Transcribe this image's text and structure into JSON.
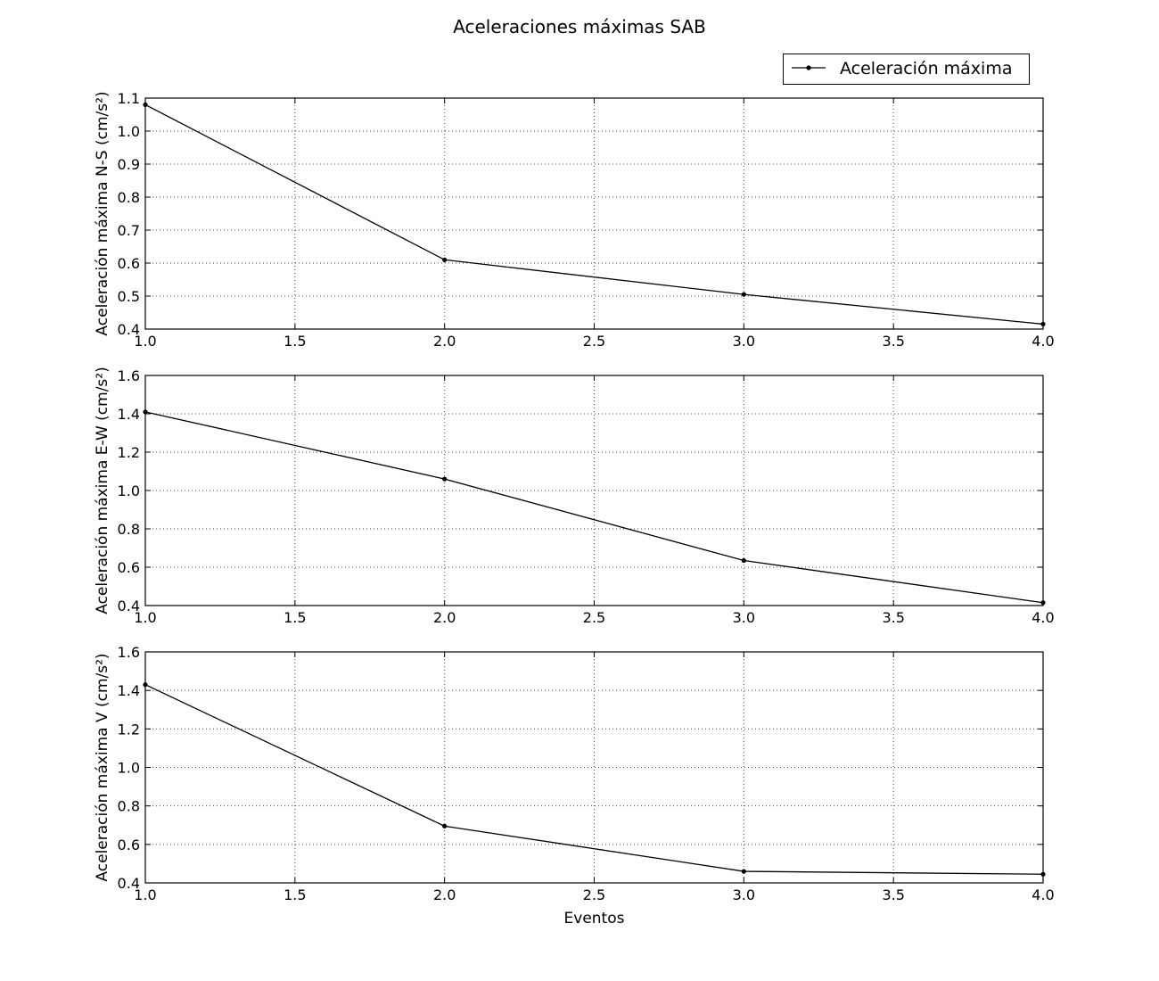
{
  "figure": {
    "title": "Aceleraciones máximas SAB",
    "xlabel": "Eventos"
  },
  "legend": {
    "label": "Aceleración máxima",
    "placement": "top-right"
  },
  "colors": {
    "line": "#000000",
    "grid": "#000000",
    "background": "#ffffff"
  },
  "chart_data": [
    {
      "type": "line",
      "title": "Aceleraciones máximas SAB",
      "xlabel": "",
      "ylabel": "Aceleración máxima N-S (cm/s²)",
      "xlim": [
        1.0,
        4.0
      ],
      "ylim": [
        0.4,
        1.1
      ],
      "xticks": [
        "1.0",
        "1.5",
        "2.0",
        "2.5",
        "3.0",
        "3.5",
        "4.0"
      ],
      "yticks": [
        "0.4",
        "0.5",
        "0.6",
        "0.7",
        "0.8",
        "0.9",
        "1.0",
        "1.1"
      ],
      "grid": true,
      "series": [
        {
          "name": "Aceleración máxima",
          "x": [
            1,
            2,
            3,
            4
          ],
          "values": [
            1.08,
            0.61,
            0.505,
            0.415
          ]
        }
      ]
    },
    {
      "type": "line",
      "xlabel": "",
      "ylabel": "Aceleración máxima E-W (cm/s²)",
      "xlim": [
        1.0,
        4.0
      ],
      "ylim": [
        0.4,
        1.6
      ],
      "xticks": [
        "1.0",
        "1.5",
        "2.0",
        "2.5",
        "3.0",
        "3.5",
        "4.0"
      ],
      "yticks": [
        "0.4",
        "0.6",
        "0.8",
        "1.0",
        "1.2",
        "1.4",
        "1.6"
      ],
      "grid": true,
      "series": [
        {
          "name": "Aceleración máxima",
          "x": [
            1,
            2,
            3,
            4
          ],
          "values": [
            1.41,
            1.06,
            0.635,
            0.415
          ]
        }
      ]
    },
    {
      "type": "line",
      "xlabel": "Eventos",
      "ylabel": "Aceleración máxima V (cm/s²)",
      "xlim": [
        1.0,
        4.0
      ],
      "ylim": [
        0.4,
        1.6
      ],
      "xticks": [
        "1.0",
        "1.5",
        "2.0",
        "2.5",
        "3.0",
        "3.5",
        "4.0"
      ],
      "yticks": [
        "0.4",
        "0.6",
        "0.8",
        "1.0",
        "1.2",
        "1.4",
        "1.6"
      ],
      "grid": true,
      "series": [
        {
          "name": "Aceleración máxima",
          "x": [
            1,
            2,
            3,
            4
          ],
          "values": [
            1.43,
            0.695,
            0.46,
            0.445
          ]
        }
      ]
    }
  ]
}
